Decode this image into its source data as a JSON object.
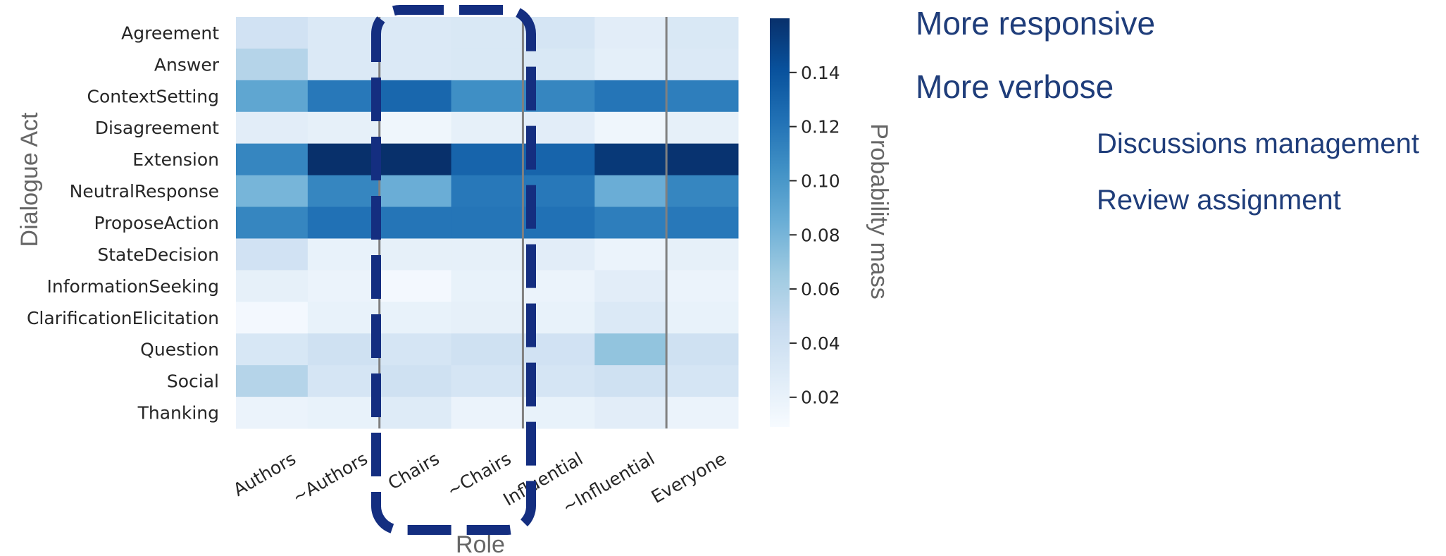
{
  "chart_data": {
    "type": "heatmap",
    "title": "",
    "xlabel": "Role",
    "ylabel": "Dialogue Act",
    "x_categories": [
      "Authors",
      "~Authors",
      "Chairs",
      "~Chairs",
      "Influential",
      "~Influential",
      "Everyone"
    ],
    "y_categories": [
      "Agreement",
      "Answer",
      "ContextSetting",
      "Disagreement",
      "Extension",
      "NeutralResponse",
      "ProposeAction",
      "StateDecision",
      "InformationSeeking",
      "ClarificationElicitation",
      "Question",
      "Social",
      "Thanking"
    ],
    "values": [
      [
        0.038,
        0.03,
        0.03,
        0.032,
        0.035,
        0.025,
        0.032
      ],
      [
        0.055,
        0.03,
        0.03,
        0.032,
        0.032,
        0.023,
        0.03
      ],
      [
        0.09,
        0.118,
        0.128,
        0.105,
        0.11,
        0.12,
        0.115
      ],
      [
        0.025,
        0.022,
        0.015,
        0.022,
        0.025,
        0.015,
        0.022
      ],
      [
        0.11,
        0.16,
        0.162,
        0.13,
        0.13,
        0.155,
        0.158
      ],
      [
        0.08,
        0.11,
        0.085,
        0.118,
        0.118,
        0.085,
        0.11
      ],
      [
        0.11,
        0.122,
        0.12,
        0.12,
        0.122,
        0.115,
        0.118
      ],
      [
        0.038,
        0.02,
        0.022,
        0.022,
        0.025,
        0.018,
        0.022
      ],
      [
        0.022,
        0.018,
        0.012,
        0.02,
        0.018,
        0.025,
        0.018
      ],
      [
        0.012,
        0.02,
        0.02,
        0.022,
        0.02,
        0.03,
        0.02
      ],
      [
        0.033,
        0.04,
        0.035,
        0.04,
        0.038,
        0.07,
        0.04
      ],
      [
        0.055,
        0.035,
        0.04,
        0.035,
        0.035,
        0.04,
        0.035
      ],
      [
        0.018,
        0.02,
        0.028,
        0.018,
        0.02,
        0.025,
        0.018
      ]
    ],
    "colorbar": {
      "label": "Probability mass",
      "range": [
        0.009,
        0.16
      ],
      "ticks": [
        0.02,
        0.04,
        0.06,
        0.08,
        0.1,
        0.12,
        0.14
      ],
      "tick_labels": [
        "0.02",
        "0.04",
        "0.06",
        "0.08",
        "0.10",
        "0.12",
        "0.14"
      ],
      "colormap": "Blues"
    },
    "column_separators_after": [
      "~Authors",
      "~Chairs",
      "~Influential"
    ],
    "highlight": {
      "columns": [
        "Chairs",
        "~Chairs"
      ],
      "style": "dashed rounded box",
      "color": "#142e80"
    },
    "grid": false
  },
  "annotations": {
    "more_responsive": "More responsive",
    "more_verbose": "More verbose",
    "discussions_management": "Discussions management",
    "review_assignment": "Review assignment"
  }
}
